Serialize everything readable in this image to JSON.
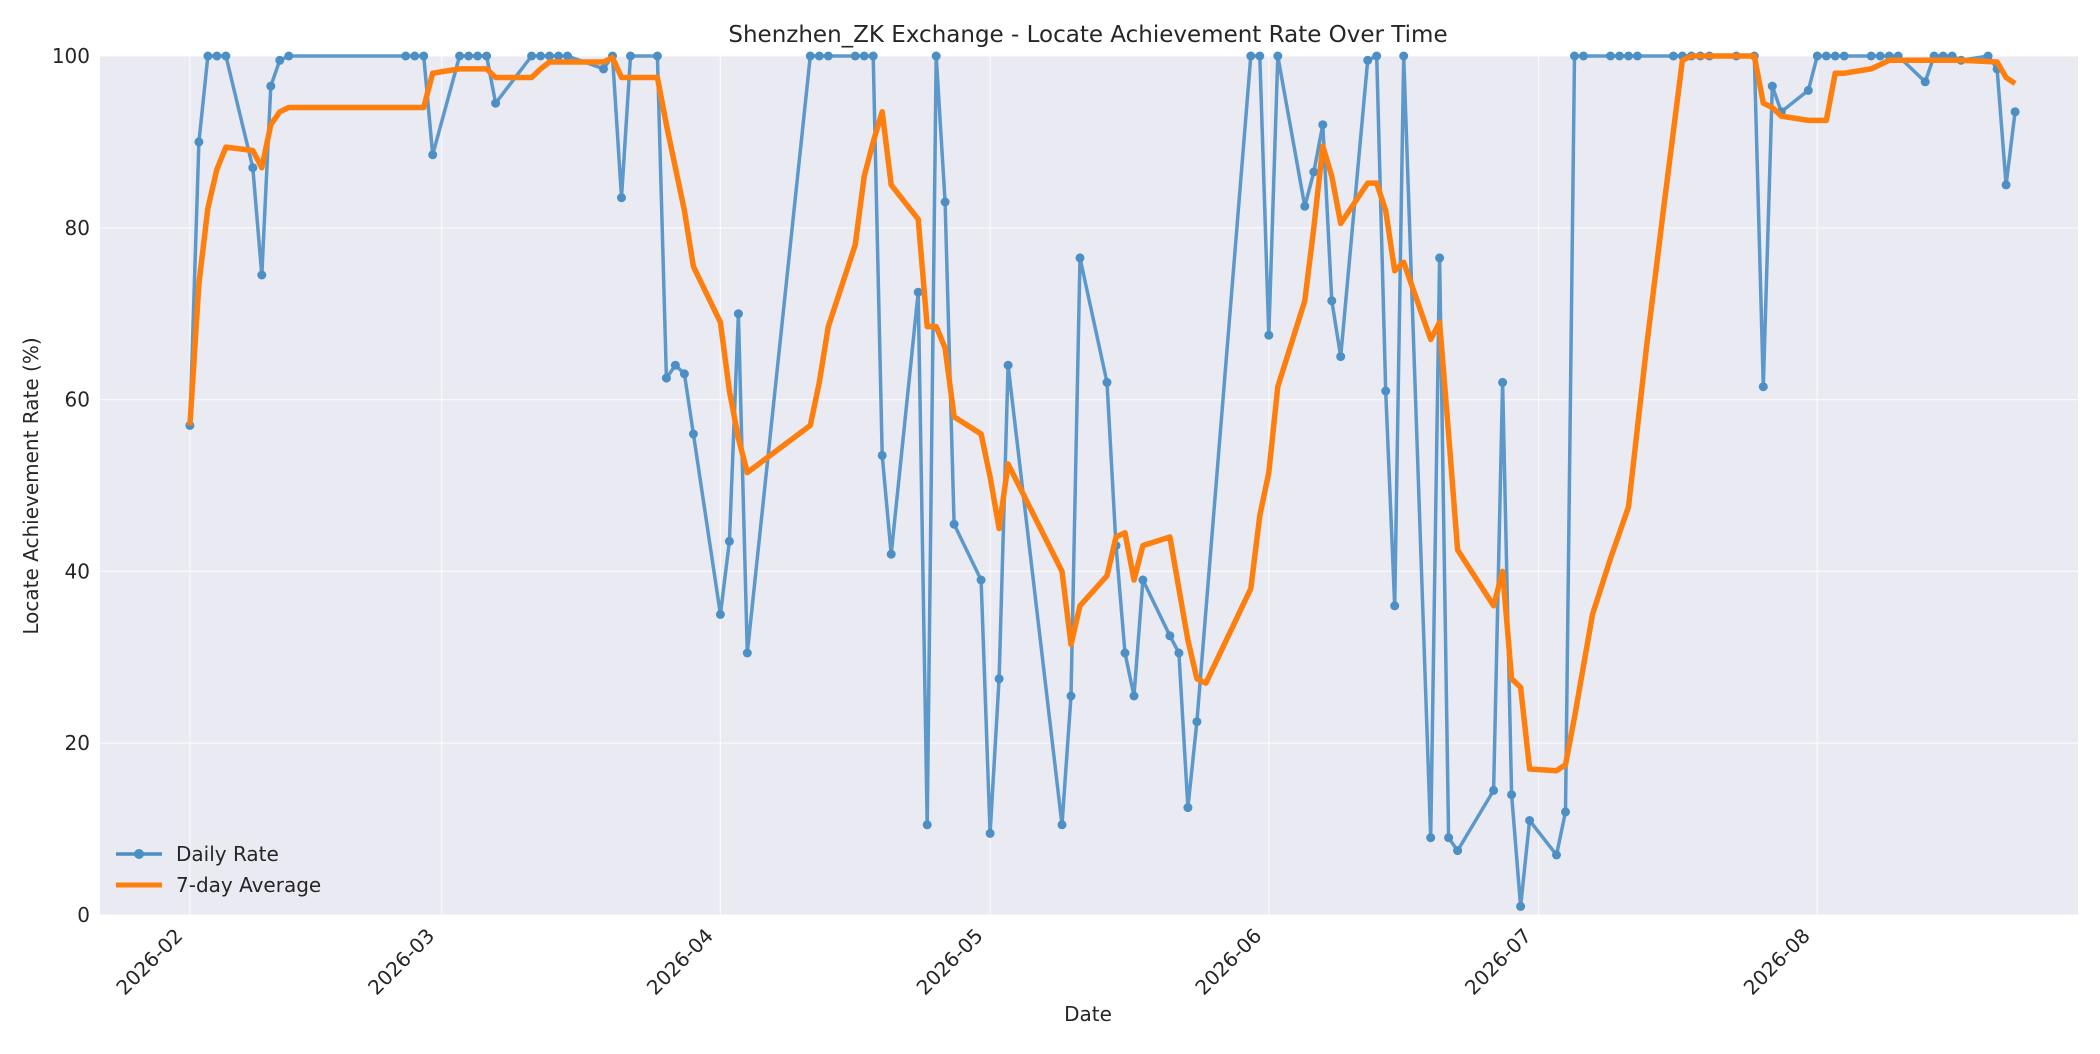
{
  "chart_data": {
    "type": "line",
    "title": "Shenzhen_ZK Exchange - Locate Achievement Rate Over Time",
    "xlabel": "Date",
    "ylabel": "Locate Achievement Rate (%)",
    "ylim": [
      0,
      100
    ],
    "xlim": [
      "2026-01-22",
      "2026-08-30"
    ],
    "x_ticks": [
      "2026-02",
      "2026-03",
      "2026-04",
      "2026-05",
      "2026-06",
      "2026-07",
      "2026-08"
    ],
    "y_ticks": [
      0,
      20,
      40,
      60,
      80,
      100
    ],
    "grid": true,
    "legend": {
      "position": "lower-left"
    },
    "colors": {
      "background": "#eaeaf2",
      "daily": "#4c8fc4",
      "average": "#ff7f0e"
    },
    "series": [
      {
        "name": "Daily Rate",
        "style": "line-markers",
        "points": [
          [
            "2026-02-01",
            57
          ],
          [
            "2026-02-02",
            90
          ],
          [
            "2026-02-03",
            100
          ],
          [
            "2026-02-04",
            100
          ],
          [
            "2026-02-05",
            100
          ],
          [
            "2026-02-08",
            87
          ],
          [
            "2026-02-09",
            74.5
          ],
          [
            "2026-02-10",
            96.5
          ],
          [
            "2026-02-11",
            99.5
          ],
          [
            "2026-02-12",
            100
          ],
          [
            "2026-02-25",
            100
          ],
          [
            "2026-02-26",
            100
          ],
          [
            "2026-02-27",
            100
          ],
          [
            "2026-02-28",
            88.5
          ],
          [
            "2026-03-03",
            100
          ],
          [
            "2026-03-04",
            100
          ],
          [
            "2026-03-05",
            100
          ],
          [
            "2026-03-06",
            100
          ],
          [
            "2026-03-07",
            94.5
          ],
          [
            "2026-03-11",
            100
          ],
          [
            "2026-03-12",
            100
          ],
          [
            "2026-03-13",
            100
          ],
          [
            "2026-03-14",
            100
          ],
          [
            "2026-03-15",
            100
          ],
          [
            "2026-03-19",
            98.5
          ],
          [
            "2026-03-20",
            100
          ],
          [
            "2026-03-21",
            83.5
          ],
          [
            "2026-03-22",
            100
          ],
          [
            "2026-03-25",
            100
          ],
          [
            "2026-03-26",
            62.5
          ],
          [
            "2026-03-27",
            64
          ],
          [
            "2026-03-28",
            63
          ],
          [
            "2026-03-29",
            56
          ],
          [
            "2026-04-01",
            35
          ],
          [
            "2026-04-02",
            43.5
          ],
          [
            "2026-04-03",
            70
          ],
          [
            "2026-04-04",
            30.5
          ],
          [
            "2026-04-11",
            100
          ],
          [
            "2026-04-12",
            100
          ],
          [
            "2026-04-13",
            100
          ],
          [
            "2026-04-16",
            100
          ],
          [
            "2026-04-17",
            100
          ],
          [
            "2026-04-18",
            100
          ],
          [
            "2026-04-19",
            53.5
          ],
          [
            "2026-04-20",
            42
          ],
          [
            "2026-04-23",
            72.5
          ],
          [
            "2026-04-24",
            10.5
          ],
          [
            "2026-04-25",
            100
          ],
          [
            "2026-04-26",
            83
          ],
          [
            "2026-04-27",
            45.5
          ],
          [
            "2026-04-30",
            39
          ],
          [
            "2026-05-01",
            9.5
          ],
          [
            "2026-05-02",
            27.5
          ],
          [
            "2026-05-03",
            64
          ],
          [
            "2026-05-09",
            10.5
          ],
          [
            "2026-05-10",
            25.5
          ],
          [
            "2026-05-11",
            76.5
          ],
          [
            "2026-05-14",
            62
          ],
          [
            "2026-05-15",
            43
          ],
          [
            "2026-05-16",
            30.5
          ],
          [
            "2026-05-17",
            25.5
          ],
          [
            "2026-05-18",
            39
          ],
          [
            "2026-05-21",
            32.5
          ],
          [
            "2026-05-22",
            30.5
          ],
          [
            "2026-05-23",
            12.5
          ],
          [
            "2026-05-24",
            22.5
          ],
          [
            "2026-05-30",
            100
          ],
          [
            "2026-05-31",
            100
          ],
          [
            "2026-06-01",
            67.5
          ],
          [
            "2026-06-02",
            100
          ],
          [
            "2026-06-05",
            82.5
          ],
          [
            "2026-06-06",
            86.5
          ],
          [
            "2026-06-07",
            92
          ],
          [
            "2026-06-08",
            71.5
          ],
          [
            "2026-06-09",
            65
          ],
          [
            "2026-06-12",
            99.5
          ],
          [
            "2026-06-13",
            100
          ],
          [
            "2026-06-14",
            61
          ],
          [
            "2026-06-15",
            36
          ],
          [
            "2026-06-16",
            100
          ],
          [
            "2026-06-19",
            9
          ],
          [
            "2026-06-20",
            76.5
          ],
          [
            "2026-06-21",
            9
          ],
          [
            "2026-06-22",
            7.5
          ],
          [
            "2026-06-26",
            14.5
          ],
          [
            "2026-06-27",
            62
          ],
          [
            "2026-06-28",
            14
          ],
          [
            "2026-06-29",
            1
          ],
          [
            "2026-06-30",
            11
          ],
          [
            "2026-07-03",
            7
          ],
          [
            "2026-07-04",
            12
          ],
          [
            "2026-07-05",
            100
          ],
          [
            "2026-07-06",
            100
          ],
          [
            "2026-07-09",
            100
          ],
          [
            "2026-07-10",
            100
          ],
          [
            "2026-07-11",
            100
          ],
          [
            "2026-07-12",
            100
          ],
          [
            "2026-07-16",
            100
          ],
          [
            "2026-07-17",
            100
          ],
          [
            "2026-07-18",
            100
          ],
          [
            "2026-07-19",
            100
          ],
          [
            "2026-07-20",
            100
          ],
          [
            "2026-07-23",
            100
          ],
          [
            "2026-07-25",
            100
          ],
          [
            "2026-07-26",
            61.5
          ],
          [
            "2026-07-27",
            96.5
          ],
          [
            "2026-07-28",
            93.5
          ],
          [
            "2026-07-31",
            96
          ],
          [
            "2026-08-01",
            100
          ],
          [
            "2026-08-02",
            100
          ],
          [
            "2026-08-03",
            100
          ],
          [
            "2026-08-04",
            100
          ],
          [
            "2026-08-07",
            100
          ],
          [
            "2026-08-08",
            100
          ],
          [
            "2026-08-09",
            100
          ],
          [
            "2026-08-10",
            100
          ],
          [
            "2026-08-13",
            97
          ],
          [
            "2026-08-14",
            100
          ],
          [
            "2026-08-15",
            100
          ],
          [
            "2026-08-16",
            100
          ],
          [
            "2026-08-17",
            99.5
          ],
          [
            "2026-08-20",
            100
          ],
          [
            "2026-08-21",
            98.5
          ],
          [
            "2026-08-22",
            85
          ],
          [
            "2026-08-23",
            93.5
          ]
        ]
      },
      {
        "name": "7-day Average",
        "style": "line",
        "points": [
          [
            "2026-02-01",
            57
          ],
          [
            "2026-02-02",
            73.5
          ],
          [
            "2026-02-03",
            82.3
          ],
          [
            "2026-02-04",
            86.8
          ],
          [
            "2026-02-05",
            89.4
          ],
          [
            "2026-02-08",
            89
          ],
          [
            "2026-02-09",
            87
          ],
          [
            "2026-02-10",
            92
          ],
          [
            "2026-02-11",
            93.5
          ],
          [
            "2026-02-12",
            94
          ],
          [
            "2026-02-25",
            94
          ],
          [
            "2026-02-26",
            94
          ],
          [
            "2026-02-27",
            94
          ],
          [
            "2026-02-28",
            98
          ],
          [
            "2026-03-03",
            98.5
          ],
          [
            "2026-03-04",
            98.5
          ],
          [
            "2026-03-05",
            98.5
          ],
          [
            "2026-03-06",
            98.5
          ],
          [
            "2026-03-07",
            97.5
          ],
          [
            "2026-03-11",
            97.5
          ],
          [
            "2026-03-12",
            98.5
          ],
          [
            "2026-03-13",
            99.3
          ],
          [
            "2026-03-14",
            99.3
          ],
          [
            "2026-03-15",
            99.3
          ],
          [
            "2026-03-19",
            99.3
          ],
          [
            "2026-03-20",
            99.8
          ],
          [
            "2026-03-21",
            97.5
          ],
          [
            "2026-03-22",
            97.5
          ],
          [
            "2026-03-25",
            97.5
          ],
          [
            "2026-03-26",
            92
          ],
          [
            "2026-03-27",
            87
          ],
          [
            "2026-03-28",
            82
          ],
          [
            "2026-03-29",
            75.5
          ],
          [
            "2026-04-01",
            69
          ],
          [
            "2026-04-02",
            61
          ],
          [
            "2026-04-03",
            55.5
          ],
          [
            "2026-04-04",
            51.5
          ],
          [
            "2026-04-11",
            57
          ],
          [
            "2026-04-12",
            62
          ],
          [
            "2026-04-13",
            68.5
          ],
          [
            "2026-04-16",
            78
          ],
          [
            "2026-04-17",
            86
          ],
          [
            "2026-04-18",
            90
          ],
          [
            "2026-04-19",
            93.5
          ],
          [
            "2026-04-20",
            85
          ],
          [
            "2026-04-23",
            81
          ],
          [
            "2026-04-24",
            68.5
          ],
          [
            "2026-04-25",
            68.5
          ],
          [
            "2026-04-26",
            66
          ],
          [
            "2026-04-27",
            58
          ],
          [
            "2026-04-30",
            56
          ],
          [
            "2026-05-01",
            51
          ],
          [
            "2026-05-02",
            45
          ],
          [
            "2026-05-03",
            52.5
          ],
          [
            "2026-05-09",
            40
          ],
          [
            "2026-05-10",
            31.5
          ],
          [
            "2026-05-11",
            36
          ],
          [
            "2026-05-14",
            39.5
          ],
          [
            "2026-05-15",
            44
          ],
          [
            "2026-05-16",
            44.5
          ],
          [
            "2026-05-17",
            39
          ],
          [
            "2026-05-18",
            43
          ],
          [
            "2026-05-21",
            44
          ],
          [
            "2026-05-22",
            38
          ],
          [
            "2026-05-23",
            32
          ],
          [
            "2026-05-24",
            27.5
          ],
          [
            "2026-05-25",
            27
          ],
          [
            "2026-05-30",
            38
          ],
          [
            "2026-05-31",
            46.5
          ],
          [
            "2026-06-01",
            51.5
          ],
          [
            "2026-06-02",
            61.5
          ],
          [
            "2026-06-05",
            71.5
          ],
          [
            "2026-06-06",
            80
          ],
          [
            "2026-06-07",
            89.5
          ],
          [
            "2026-06-08",
            86
          ],
          [
            "2026-06-09",
            80.5
          ],
          [
            "2026-06-12",
            85.2
          ],
          [
            "2026-06-13",
            85.2
          ],
          [
            "2026-06-14",
            82
          ],
          [
            "2026-06-15",
            75
          ],
          [
            "2026-06-16",
            76
          ],
          [
            "2026-06-19",
            67
          ],
          [
            "2026-06-20",
            69
          ],
          [
            "2026-06-21",
            56
          ],
          [
            "2026-06-22",
            42.5
          ],
          [
            "2026-06-26",
            36
          ],
          [
            "2026-06-27",
            40
          ],
          [
            "2026-06-28",
            27.5
          ],
          [
            "2026-06-29",
            26.5
          ],
          [
            "2026-06-30",
            17
          ],
          [
            "2026-07-03",
            16.8
          ],
          [
            "2026-07-04",
            17.5
          ],
          [
            "2026-07-05",
            23
          ],
          [
            "2026-07-07",
            35
          ],
          [
            "2026-07-09",
            41.5
          ],
          [
            "2026-07-11",
            47.5
          ],
          [
            "2026-07-13",
            66
          ],
          [
            "2026-07-15",
            83
          ],
          [
            "2026-07-17",
            99.5
          ],
          [
            "2026-07-18",
            100
          ],
          [
            "2026-07-25",
            100
          ],
          [
            "2026-07-26",
            94.5
          ],
          [
            "2026-07-27",
            94
          ],
          [
            "2026-07-28",
            93
          ],
          [
            "2026-07-31",
            92.5
          ],
          [
            "2026-08-02",
            92.5
          ],
          [
            "2026-08-03",
            98
          ],
          [
            "2026-08-04",
            98
          ],
          [
            "2026-08-07",
            98.5
          ],
          [
            "2026-08-08",
            99
          ],
          [
            "2026-08-09",
            99.5
          ],
          [
            "2026-08-13",
            99.5
          ],
          [
            "2026-08-14",
            99.5
          ],
          [
            "2026-08-17",
            99.5
          ],
          [
            "2026-08-21",
            99.3
          ],
          [
            "2026-08-22",
            97.5
          ],
          [
            "2026-08-23",
            96.8
          ]
        ]
      }
    ]
  }
}
